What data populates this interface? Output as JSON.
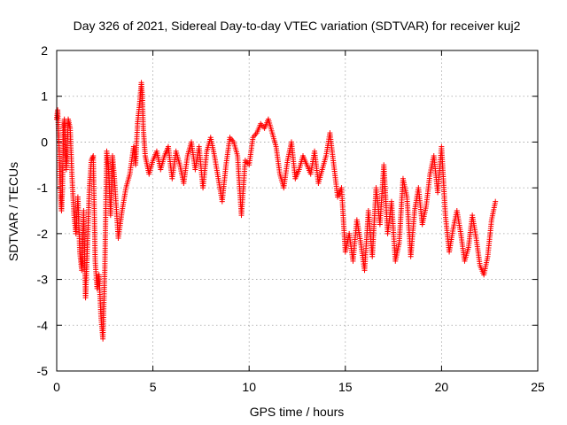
{
  "chart_data": {
    "type": "scatter",
    "title": "Day 326 of 2021, Sidereal Day-to-day VTEC variation (SDTVAR) for receiver kuj2",
    "xlabel": "GPS time / hours",
    "ylabel": "SDTVAR / TECUs",
    "xlim": [
      0,
      25
    ],
    "ylim": [
      -5,
      2
    ],
    "x_ticks": [
      "0",
      "5",
      "10",
      "15",
      "20",
      "25"
    ],
    "y_ticks": [
      "2",
      "1",
      "0",
      "-1",
      "-2",
      "-3",
      "-4",
      "-5"
    ],
    "grid": true,
    "marker": "+",
    "color": "#ff0000",
    "series": [
      {
        "name": "SDTVAR",
        "x": [
          0.0,
          0.05,
          0.1,
          0.15,
          0.2,
          0.25,
          0.3,
          0.35,
          0.4,
          0.45,
          0.5,
          0.6,
          0.7,
          0.8,
          0.9,
          1.0,
          1.1,
          1.2,
          1.3,
          1.4,
          1.5,
          1.6,
          1.7,
          1.8,
          1.9,
          2.0,
          2.1,
          2.2,
          2.3,
          2.4,
          2.5,
          2.6,
          2.7,
          2.8,
          2.9,
          3.0,
          3.2,
          3.4,
          3.6,
          3.8,
          4.0,
          4.1,
          4.2,
          4.3,
          4.4,
          4.45,
          4.5,
          4.6,
          4.7,
          4.8,
          5.0,
          5.2,
          5.4,
          5.6,
          5.8,
          6.0,
          6.2,
          6.4,
          6.6,
          6.8,
          7.0,
          7.2,
          7.4,
          7.6,
          7.8,
          8.0,
          8.2,
          8.4,
          8.6,
          8.8,
          9.0,
          9.2,
          9.4,
          9.6,
          9.8,
          10.0,
          10.2,
          10.4,
          10.6,
          10.8,
          11.0,
          11.2,
          11.4,
          11.6,
          11.8,
          12.0,
          12.2,
          12.4,
          12.6,
          12.8,
          13.0,
          13.2,
          13.4,
          13.6,
          13.8,
          14.0,
          14.2,
          14.4,
          14.6,
          14.8,
          15.0,
          15.2,
          15.4,
          15.6,
          15.8,
          16.0,
          16.2,
          16.4,
          16.6,
          16.8,
          17.0,
          17.2,
          17.4,
          17.6,
          17.8,
          18.0,
          18.2,
          18.4,
          18.6,
          18.8,
          19.0,
          19.2,
          19.4,
          19.6,
          19.8,
          20.0,
          20.2,
          20.4,
          20.6,
          20.8,
          21.0,
          21.2,
          21.4,
          21.6,
          21.8,
          22.0,
          22.2,
          22.4,
          22.6,
          22.8
        ],
        "y": [
          0.5,
          0.7,
          0.2,
          -0.5,
          -1.2,
          -1.5,
          -1.0,
          0.3,
          0.5,
          -0.2,
          -0.6,
          0.5,
          0.3,
          -0.8,
          -1.6,
          -2.0,
          -1.2,
          -2.4,
          -2.8,
          -1.5,
          -3.4,
          -2.2,
          -1.0,
          -0.4,
          -0.3,
          -2.6,
          -3.2,
          -2.9,
          -3.8,
          -4.3,
          -2.8,
          -0.2,
          -0.6,
          -1.6,
          -0.3,
          -0.8,
          -2.1,
          -1.5,
          -1.0,
          -0.7,
          -0.1,
          -0.5,
          0.4,
          0.8,
          1.3,
          1.0,
          0.3,
          -0.3,
          -0.5,
          -0.7,
          -0.4,
          -0.2,
          -0.6,
          -0.3,
          -0.1,
          -0.8,
          -0.2,
          -0.5,
          -0.9,
          -0.3,
          0.0,
          -0.6,
          -0.1,
          -1.0,
          -0.2,
          0.1,
          -0.3,
          -0.8,
          -1.3,
          -0.5,
          0.1,
          0.0,
          -0.3,
          -1.6,
          -0.4,
          -0.5,
          0.1,
          0.2,
          0.4,
          0.3,
          0.5,
          0.2,
          -0.1,
          -0.7,
          -1.0,
          -0.4,
          0.0,
          -0.8,
          -0.6,
          -0.3,
          -0.5,
          -0.7,
          -0.2,
          -0.9,
          -0.6,
          -0.3,
          0.2,
          -0.5,
          -1.2,
          -1.0,
          -2.4,
          -2.0,
          -2.6,
          -1.7,
          -2.2,
          -2.8,
          -1.5,
          -2.5,
          -1.0,
          -1.8,
          -0.5,
          -2.0,
          -1.3,
          -2.6,
          -2.2,
          -0.8,
          -1.2,
          -2.5,
          -1.5,
          -1.0,
          -1.8,
          -1.4,
          -0.7,
          -0.3,
          -1.1,
          -0.1,
          -1.6,
          -2.4,
          -1.9,
          -1.5,
          -2.0,
          -2.6,
          -2.3,
          -1.6,
          -2.1,
          -2.7,
          -2.9,
          -2.5,
          -1.7,
          -1.3
        ]
      }
    ]
  }
}
